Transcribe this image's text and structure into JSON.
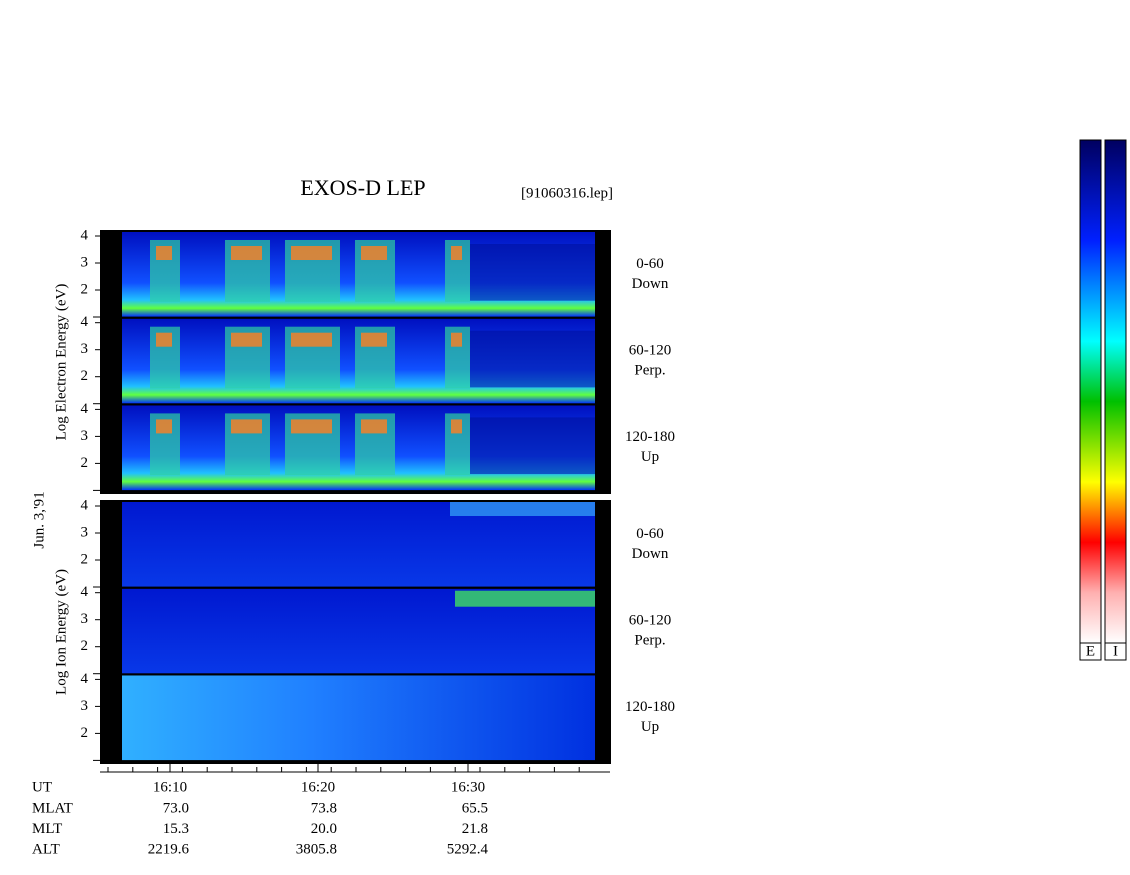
{
  "header": {
    "title": "EXOS-D LEP",
    "file": "[91060316.lep]",
    "date": "Jun. 3,'91"
  },
  "panels": [
    {
      "axis_label": "Log Electron Energy (eV)",
      "yticks": [
        4,
        3,
        2
      ],
      "subpanels": [
        {
          "angle": "0-60",
          "direction": "Down"
        },
        {
          "angle": "60-120",
          "direction": "Perp."
        },
        {
          "angle": "120-180",
          "direction": "Up"
        }
      ]
    },
    {
      "axis_label": "Log Ion Energy (eV)",
      "yticks": [
        4,
        3,
        2
      ],
      "subpanels": [
        {
          "angle": "0-60",
          "direction": "Down"
        },
        {
          "angle": "60-120",
          "direction": "Perp."
        },
        {
          "angle": "120-180",
          "direction": "Up"
        }
      ]
    }
  ],
  "time_axis": {
    "label": "UT",
    "ticks": [
      "16:10",
      "16:20",
      "16:30"
    ]
  },
  "ephemeris": [
    {
      "label": "MLAT",
      "values": [
        "73.0",
        "73.8",
        "65.5"
      ]
    },
    {
      "label": "MLT",
      "values": [
        "15.3",
        "20.0",
        "21.8"
      ]
    },
    {
      "label": "ALT",
      "values": [
        "2219.6",
        "3805.8",
        "5292.4"
      ]
    }
  ],
  "colorbars": [
    "E",
    "I"
  ]
}
